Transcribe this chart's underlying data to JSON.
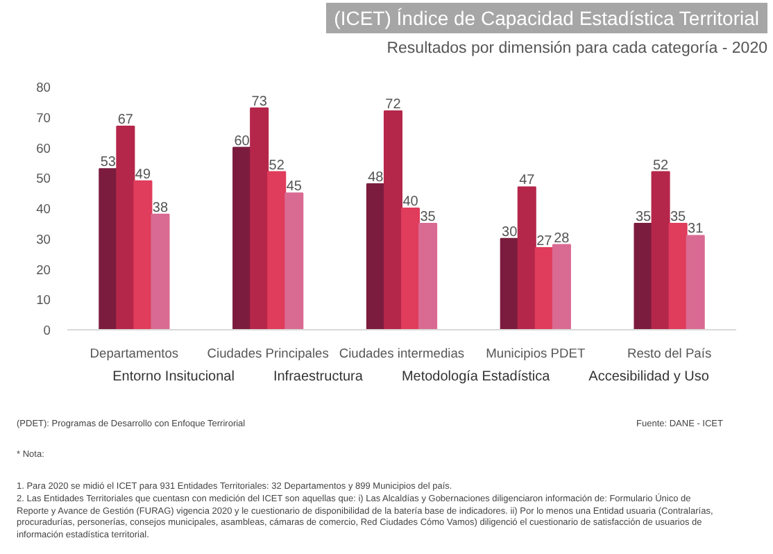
{
  "chart_data": {
    "type": "bar",
    "title": "(ICET) Índice de Capacidad Estadística Territorial",
    "subtitle": "Resultados por dimensión para cada categoría - 2020",
    "categories": [
      "Departamentos",
      "Ciudades Principales",
      "Ciudades intermedias",
      "Municipios PDET",
      "Resto del País"
    ],
    "series": [
      {
        "name": "Entorno Insitucional",
        "color": "#7b1c3e",
        "values": [
          53,
          60,
          48,
          30,
          35
        ]
      },
      {
        "name": "Infraestructura",
        "color": "#b5274a",
        "values": [
          67,
          73,
          72,
          47,
          52
        ]
      },
      {
        "name": "Metodología Estadística",
        "color": "#e03c5c",
        "values": [
          49,
          52,
          40,
          27,
          35
        ]
      },
      {
        "name": "Accesibilidad y Uso",
        "color": "#d96b93",
        "values": [
          38,
          45,
          35,
          28,
          31
        ]
      }
    ],
    "ylim": [
      0,
      80
    ],
    "yticks": [
      0,
      10,
      20,
      30,
      40,
      50,
      60,
      70,
      80
    ],
    "grid": false,
    "legend": "bottom",
    "data_labels": true,
    "annotations": [
      "(PDET): Programas de Desarrollo con Enfoque Terrirorial",
      "Fuente: DANE - ICET",
      "* Nota:",
      "1. Para   2020 se midió el ICET para 931 Entidades Territoriales: 32 Departamentos y 899 Municipios del país.",
      "2. Las Entidades Territoriales  que cuentasn con medición del ICET son aquellas que: i) Las Alcaldías y Gobernaciones diligenciaron información de: Formulario Único de Reporte y Avance de Gestión (FURAG) vigencia 2020 y le cuestionario de disponibilidad de la batería base de indicadores. ii) Por lo menos una Entidad usuaria (Contralarías, procuradurías, personerías, consejos municipales, asambleas, cámaras de comercio, Red Ciudades Cómo Vamos) diligenció el cuestionario de satisfacción de usuarios de información estadística territorial."
    ]
  }
}
